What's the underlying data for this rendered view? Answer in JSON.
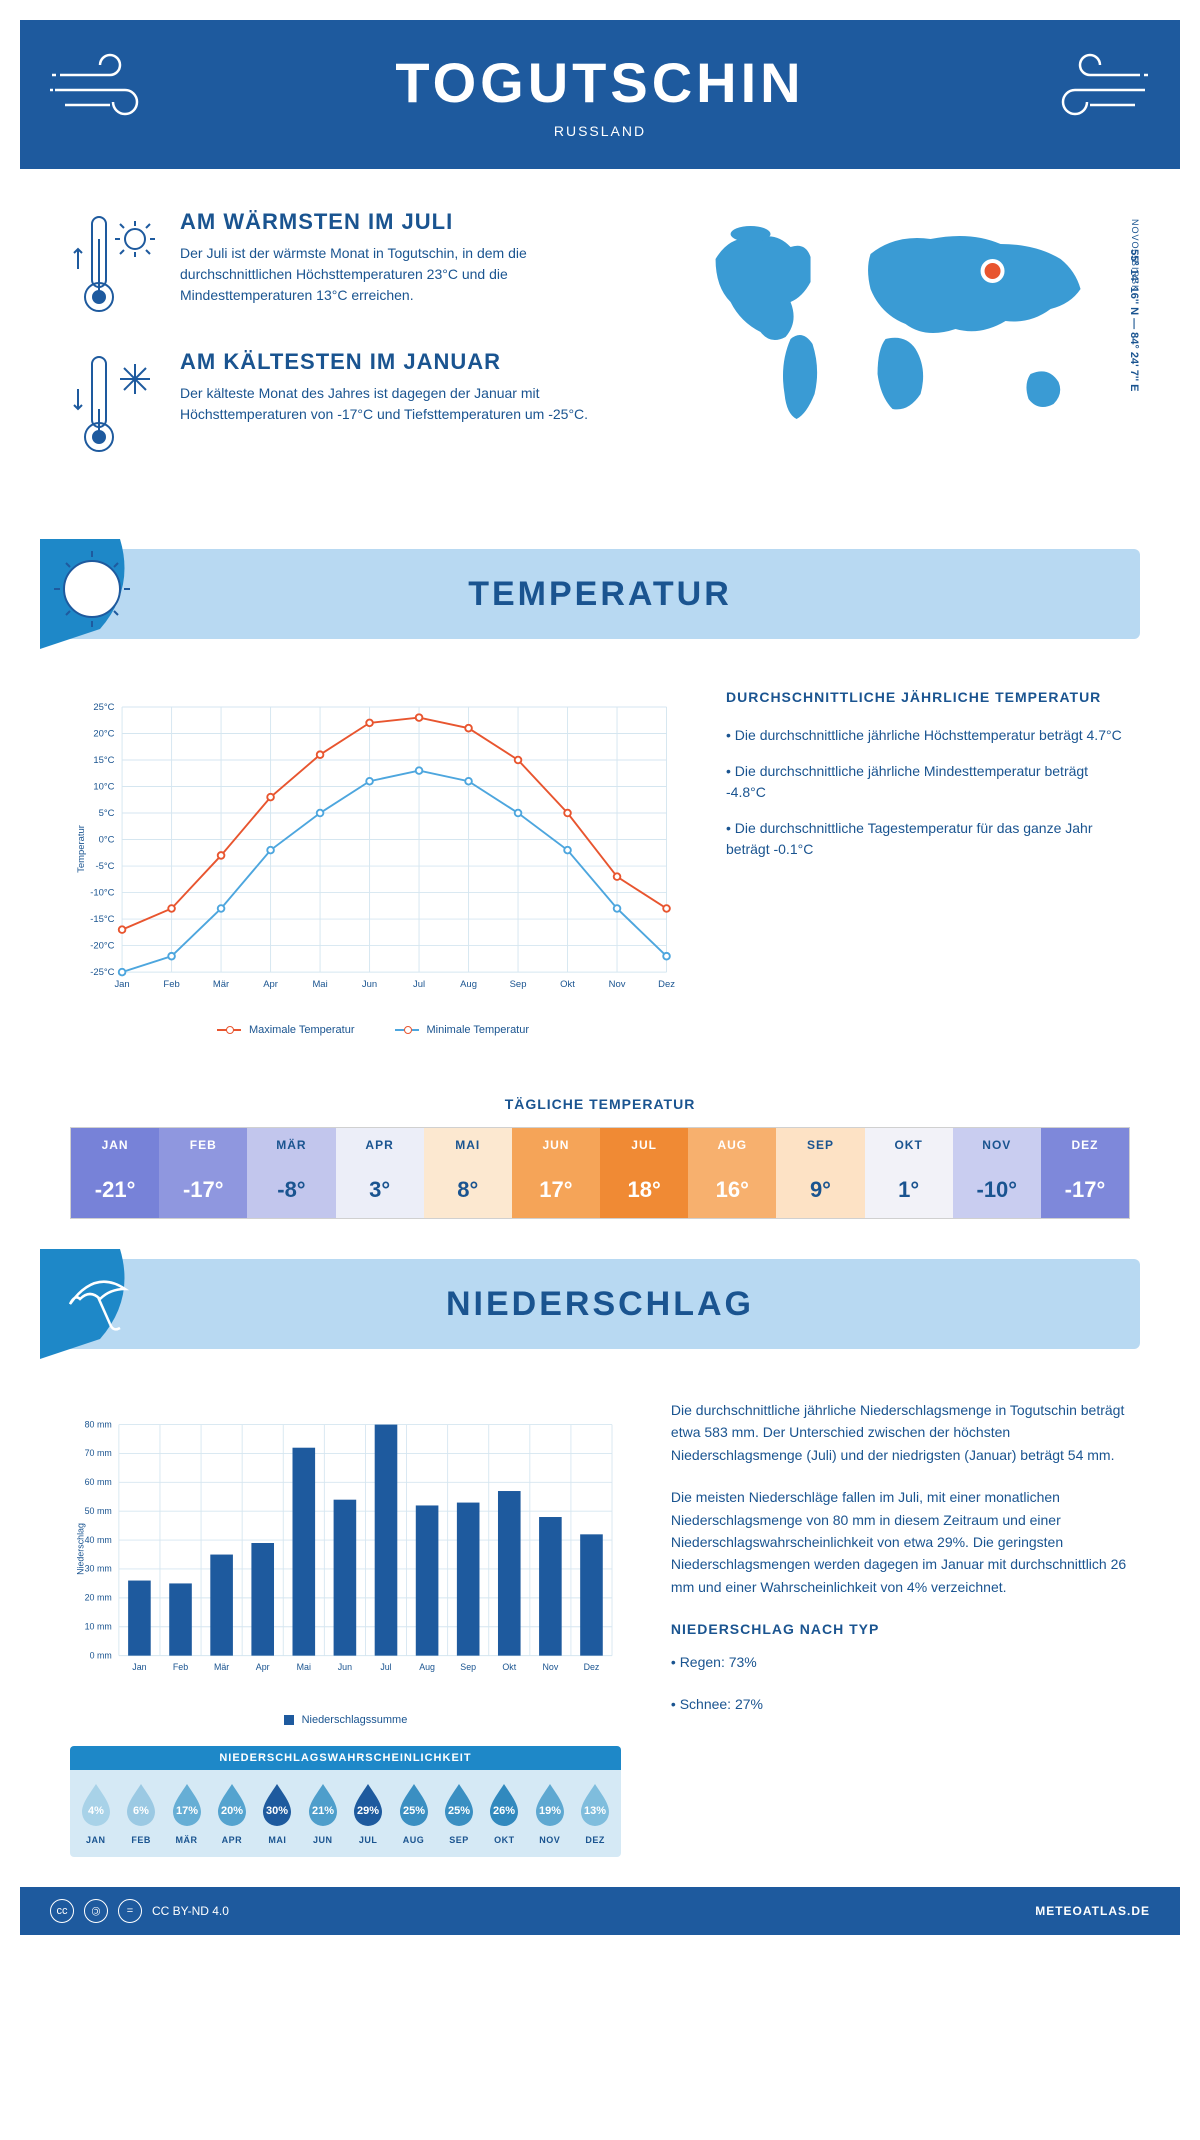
{
  "header": {
    "title": "TOGUTSCHIN",
    "subtitle": "RUSSLAND"
  },
  "intro": {
    "warm": {
      "title": "AM WÄRMSTEN IM JULI",
      "text": "Der Juli ist der wärmste Monat in Togutschin, in dem die durchschnittlichen Höchsttemperaturen 23°C und die Mindesttemperaturen 13°C erreichen."
    },
    "cold": {
      "title": "AM KÄLTESTEN IM JANUAR",
      "text": "Der kälteste Monat des Jahres ist dagegen der Januar mit Höchsttemperaturen von -17°C und Tiefsttemperaturen um -25°C."
    },
    "coords": "55° 14' 16'' N — 84° 24' 7'' E",
    "region": "NOVOSIBIRSK"
  },
  "temp_section": {
    "title": "TEMPERATUR",
    "text_title": "DURCHSCHNITTLICHE JÄHRLICHE TEMPERATUR",
    "bullets": [
      "• Die durchschnittliche jährliche Höchsttemperatur beträgt 4.7°C",
      "• Die durchschnittliche jährliche Mindesttemperatur beträgt -4.8°C",
      "• Die durchschnittliche Tagestemperatur für das ganze Jahr beträgt -0.1°C"
    ],
    "chart": {
      "type": "line",
      "months": [
        "Jan",
        "Feb",
        "Mär",
        "Apr",
        "Mai",
        "Jun",
        "Jul",
        "Aug",
        "Sep",
        "Okt",
        "Nov",
        "Dez"
      ],
      "max_series": [
        -17,
        -13,
        -3,
        8,
        16,
        22,
        23,
        21,
        15,
        5,
        -7,
        -13
      ],
      "min_series": [
        -25,
        -22,
        -13,
        -2,
        5,
        11,
        13,
        11,
        5,
        -2,
        -13,
        -22
      ],
      "ymin": -25,
      "ymax": 25,
      "ystep": 5,
      "max_color": "#e8552f",
      "min_color": "#4da6de",
      "grid_color": "#d5e6f0",
      "bg": "#ffffff",
      "ylabel": "Temperatur",
      "legend_max": "Maximale Temperatur",
      "legend_min": "Minimale Temperatur"
    },
    "daily": {
      "title": "TÄGLICHE TEMPERATUR",
      "months": [
        "JAN",
        "FEB",
        "MÄR",
        "APR",
        "MAI",
        "JUN",
        "JUL",
        "AUG",
        "SEP",
        "OKT",
        "NOV",
        "DEZ"
      ],
      "values": [
        "-21°",
        "-17°",
        "-8°",
        "3°",
        "8°",
        "17°",
        "18°",
        "16°",
        "9°",
        "1°",
        "-10°",
        "-17°"
      ],
      "colors": [
        "#7782d8",
        "#8f97df",
        "#c2c6ed",
        "#eceef8",
        "#fce8d0",
        "#f5a458",
        "#f08a34",
        "#f7b06e",
        "#fde2c5",
        "#f2f2f8",
        "#c9cdf0",
        "#7e88da"
      ],
      "text_colors": [
        "#ffffff",
        "#ffffff",
        "#1a5490",
        "#1a5490",
        "#1a5490",
        "#ffffff",
        "#ffffff",
        "#ffffff",
        "#1a5490",
        "#1a5490",
        "#1a5490",
        "#ffffff"
      ]
    }
  },
  "precip_section": {
    "title": "NIEDERSCHLAG",
    "chart": {
      "type": "bar",
      "months": [
        "Jan",
        "Feb",
        "Mär",
        "Apr",
        "Mai",
        "Jun",
        "Jul",
        "Aug",
        "Sep",
        "Okt",
        "Nov",
        "Dez"
      ],
      "values": [
        26,
        25,
        35,
        39,
        72,
        54,
        80,
        52,
        53,
        57,
        48,
        42
      ],
      "ymin": 0,
      "ymax": 80,
      "ystep": 10,
      "bar_color": "#1e5a9e",
      "grid_color": "#d5e6f0",
      "ylabel": "Niederschlag",
      "legend": "Niederschlagssumme"
    },
    "text1": "Die durchschnittliche jährliche Niederschlagsmenge in Togutschin beträgt etwa 583 mm. Der Unterschied zwischen der höchsten Niederschlagsmenge (Juli) und der niedrigsten (Januar) beträgt 54 mm.",
    "text2": "Die meisten Niederschläge fallen im Juli, mit einer monatlichen Niederschlagsmenge von 80 mm in diesem Zeitraum und einer Niederschlagswahrscheinlichkeit von etwa 29%. Die geringsten Niederschlagsmengen werden dagegen im Januar mit durchschnittlich 26 mm und einer Wahrscheinlichkeit von 4% verzeichnet.",
    "type_title": "NIEDERSCHLAG NACH TYP",
    "type_bullets": [
      "• Regen: 73%",
      "• Schnee: 27%"
    ],
    "prob": {
      "title": "NIEDERSCHLAGSWAHRSCHEINLICHKEIT",
      "months": [
        "JAN",
        "FEB",
        "MÄR",
        "APR",
        "MAI",
        "JUN",
        "JUL",
        "AUG",
        "SEP",
        "OKT",
        "NOV",
        "DEZ"
      ],
      "values": [
        "4%",
        "6%",
        "17%",
        "20%",
        "30%",
        "21%",
        "29%",
        "25%",
        "25%",
        "26%",
        "19%",
        "13%"
      ],
      "colors": [
        "#a8d2e8",
        "#9bc9e3",
        "#66aed5",
        "#54a3cf",
        "#1e5a9e",
        "#4e9ecb",
        "#1e5a9e",
        "#3a8fc2",
        "#3a8fc2",
        "#3189be",
        "#5ea8d1",
        "#7fbddd"
      ]
    }
  },
  "footer": {
    "license": "CC BY-ND 4.0",
    "site": "METEOATLAS.DE"
  }
}
